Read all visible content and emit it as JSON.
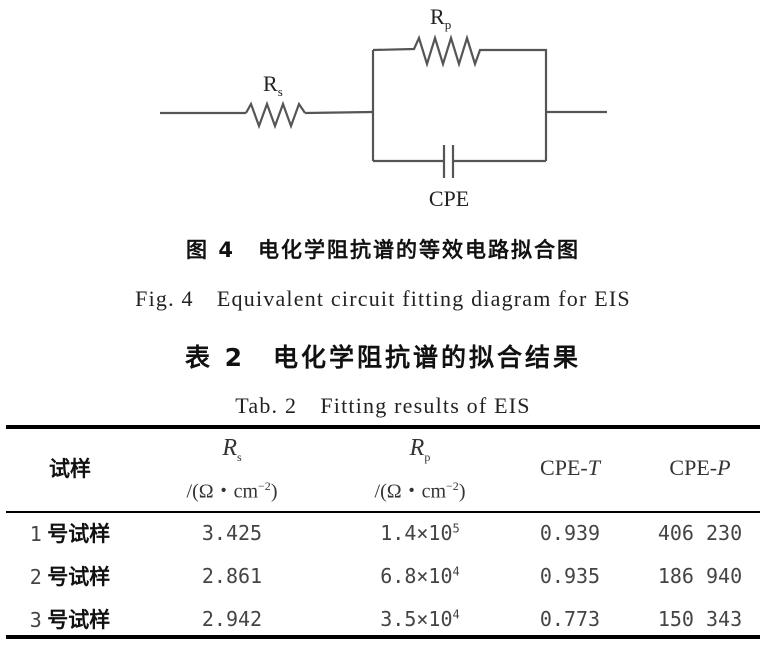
{
  "figure": {
    "circuit_labels": {
      "rs_main": "R",
      "rs_sub": "s",
      "rp_main": "R",
      "rp_sub": "p",
      "cpe": "CPE"
    },
    "caption_cn": "图 4　电化学阻抗谱的等效电路拟合图",
    "caption_en": "Fig. 4　Equivalent circuit fitting diagram for EIS"
  },
  "table": {
    "title_cn": "表 2　电化学阻抗谱的拟合结果",
    "title_en": "Tab. 2　Fitting results of EIS",
    "headers": {
      "sample": "试样",
      "rs_main": "R",
      "rs_sub": "s",
      "rs_unit": "/(Ω・cm",
      "rs_exp": "−2",
      "rs_close": ")",
      "rp_main": "R",
      "rp_sub": "p",
      "rp_unit": "/(Ω・cm",
      "rp_exp": "−2",
      "rp_close": ")",
      "cpet_pre": "CPE-",
      "cpet_it": "T",
      "cpep_pre": "CPE-",
      "cpep_it": "P"
    },
    "rows": [
      {
        "num": "1",
        "label": "号试样",
        "rs": "3.425",
        "rp_base": "1.4×10",
        "rp_exp": "5",
        "cpe_t": "0.939",
        "cpe_p": "406 230"
      },
      {
        "num": "2",
        "label": "号试样",
        "rs": "2.861",
        "rp_base": "6.8×10",
        "rp_exp": "4",
        "cpe_t": "0.935",
        "cpe_p": "186 940"
      },
      {
        "num": "3",
        "label": "号试样",
        "rs": "2.942",
        "rp_base": "3.5×10",
        "rp_exp": "4",
        "cpe_t": "0.773",
        "cpe_p": "150 343"
      }
    ]
  }
}
